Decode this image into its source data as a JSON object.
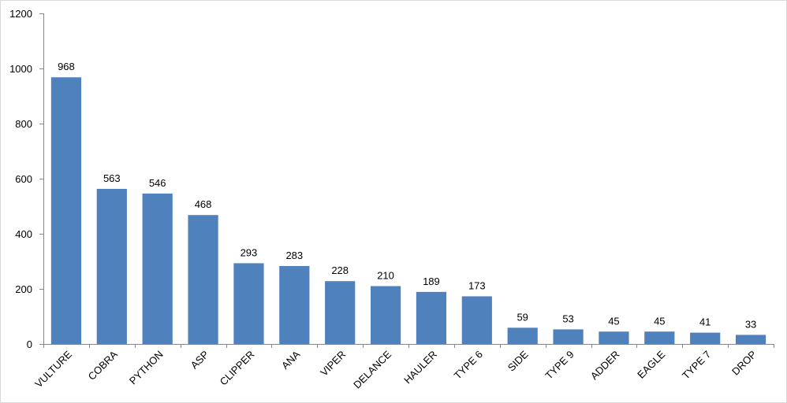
{
  "chart_data": {
    "type": "bar",
    "categories": [
      "VULTURE",
      "COBRA",
      "PYTHON",
      "ASP",
      "CLIPPER",
      "ANA",
      "VIPER",
      "DELANCE",
      "HAULER",
      "TYPE 6",
      "SIDE",
      "TYPE 9",
      "ADDER",
      "EAGLE",
      "TYPE 7",
      "DROP"
    ],
    "values": [
      968,
      563,
      546,
      468,
      293,
      283,
      228,
      210,
      189,
      173,
      59,
      53,
      45,
      45,
      41,
      33
    ],
    "color": "#4f81bd",
    "ylim": [
      0,
      1200
    ],
    "yticks": [
      0,
      200,
      400,
      600,
      800,
      1000,
      1200
    ],
    "grid": false
  }
}
